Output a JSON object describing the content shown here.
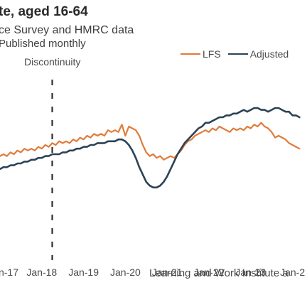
{
  "chart_data": {
    "type": "line",
    "title": "te, aged 16-64",
    "subtitle": "ce Survey and HMRC data",
    "subtitle2": "Published monthly",
    "annotation": "Discontinuity",
    "source": "Learning and Work Institute a",
    "x_tick_labels": [
      "n-17",
      "Jan-18",
      "Jan-19",
      "Jan-20",
      "Jan-21",
      "Jan-22",
      "Jan-23",
      "Jan-2"
    ],
    "x_tick_index": [
      0,
      12,
      24,
      36,
      48,
      60,
      72,
      84
    ],
    "discontinuity_index": 15,
    "ylim": [
      0,
      100
    ],
    "legend_position": "top-right",
    "series": [
      {
        "name": "LFS",
        "color": "#e07b39",
        "values": [
          54,
          55,
          54,
          56,
          55,
          57,
          56,
          58,
          57,
          58,
          57,
          59,
          58,
          60,
          59,
          61,
          60,
          62,
          61,
          62,
          61,
          63,
          62,
          64,
          63,
          65,
          64,
          66,
          65,
          66,
          65,
          68,
          67,
          68,
          67,
          71,
          65,
          70,
          69,
          68,
          65,
          60,
          56,
          54,
          55,
          53,
          54,
          52,
          53,
          54,
          53,
          55,
          57,
          60,
          62,
          63,
          65,
          66,
          67,
          68,
          67,
          69,
          68,
          70,
          69,
          68,
          67,
          69,
          68,
          69,
          68,
          70,
          69,
          71,
          70,
          72,
          70,
          69,
          67,
          64,
          65,
          64,
          63,
          61,
          60,
          59,
          58
        ]
      },
      {
        "name": "Adjusted",
        "color": "#2b4356",
        "values": [
          47,
          48,
          48,
          49,
          49,
          50,
          50,
          51,
          51,
          52,
          52,
          53,
          53,
          54,
          54,
          55,
          55,
          55,
          56,
          56,
          57,
          57,
          58,
          58,
          59,
          59,
          60,
          60,
          61,
          61,
          61,
          62,
          62,
          62,
          63,
          63,
          62,
          60,
          57,
          53,
          48,
          44,
          40,
          38,
          37,
          37,
          38,
          40,
          43,
          47,
          51,
          55,
          58,
          61,
          63,
          65,
          67,
          69,
          70,
          72,
          72,
          73,
          74,
          75,
          75,
          76,
          76,
          77,
          77,
          78,
          79,
          78,
          79,
          80,
          80,
          79,
          79,
          78,
          79,
          80,
          80,
          79,
          78,
          78,
          76,
          76,
          75
        ]
      }
    ]
  }
}
